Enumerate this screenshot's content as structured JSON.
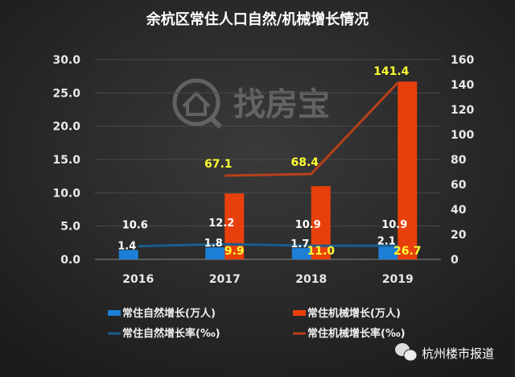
{
  "chart_data": {
    "type": "bar",
    "title": "余杭区常住人口自然/机械增长情况",
    "categories": [
      "2016",
      "2017",
      "2018",
      "2019"
    ],
    "y_left": {
      "range": [
        0,
        30
      ],
      "ticks": [
        "0.0",
        "5.0",
        "10.0",
        "15.0",
        "20.0",
        "25.0",
        "30.0"
      ]
    },
    "y_right": {
      "range": [
        0,
        160
      ],
      "ticks": [
        "0",
        "20",
        "40",
        "60",
        "80",
        "100",
        "120",
        "140",
        "160"
      ]
    },
    "grid": true,
    "legend_position": "bottom",
    "series": [
      {
        "name": "常住自然增长(万人)",
        "type": "bar",
        "axis": "left",
        "color": "#1e7fd6",
        "values": [
          1.4,
          1.8,
          1.7,
          2.1
        ],
        "labels": [
          "1.4",
          "1.8",
          "1.7",
          "2.1"
        ]
      },
      {
        "name": "常住机械增长(万人)",
        "type": "bar",
        "axis": "left",
        "color": "#e8400c",
        "values": [
          null,
          9.9,
          11.0,
          26.7
        ],
        "labels": [
          "",
          "9.9",
          "11.0",
          "26.7"
        ]
      },
      {
        "name": "常住自然增长率(‰)",
        "type": "line",
        "axis": "right",
        "color": "#1a5d8f",
        "values": [
          10.6,
          12.2,
          10.9,
          10.9
        ],
        "labels": [
          "10.6",
          "12.2",
          "10.9",
          "10.9"
        ]
      },
      {
        "name": "常住机械增长率(‰)",
        "type": "line",
        "axis": "right",
        "color": "#b8401a",
        "values": [
          null,
          67.1,
          68.4,
          141.4
        ],
        "labels": [
          "",
          "67.1",
          "68.4",
          "141.4"
        ]
      }
    ]
  },
  "watermark": "找房宝",
  "source": "杭州楼市报道",
  "icons": {
    "source": "wechat-icon",
    "watermark": "house-search-icon"
  }
}
